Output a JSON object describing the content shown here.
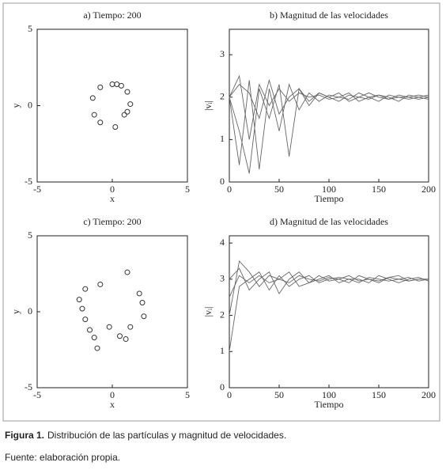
{
  "chart_data": [
    {
      "type": "scatter",
      "title": "a) Tiempo: 200",
      "x_label": "x",
      "y_label": "y",
      "xlim": [
        -5,
        5
      ],
      "ylim": [
        -5,
        5
      ],
      "xticks": [
        -5,
        0,
        5
      ],
      "yticks": [
        -5,
        0,
        5
      ],
      "color": "#333333",
      "x": [
        -1.3,
        -0.8,
        0.0,
        0.6,
        1.0,
        1.2,
        0.8,
        0.2,
        -0.8,
        -1.2,
        1.0,
        0.3
      ],
      "y": [
        0.5,
        1.2,
        1.4,
        1.3,
        0.9,
        0.1,
        -0.6,
        -1.4,
        -1.1,
        -0.6,
        -0.4,
        1.4
      ]
    },
    {
      "type": "line",
      "title": "b) Magnitud de las velocidades",
      "x_label": "Tiempo",
      "y_label": "|vᵢ|",
      "xlim": [
        0,
        200
      ],
      "ylim": [
        0,
        3.6
      ],
      "xticks": [
        0,
        50,
        100,
        150,
        200
      ],
      "yticks": [
        0,
        1,
        2,
        3
      ],
      "color": "#666666",
      "x": [
        0,
        10,
        20,
        30,
        40,
        50,
        60,
        70,
        80,
        90,
        100,
        110,
        120,
        130,
        140,
        150,
        160,
        170,
        180,
        190,
        200
      ],
      "series": [
        {
          "values": [
            2.0,
            2.5,
            1.0,
            2.3,
            1.8,
            2.2,
            1.9,
            2.1,
            2.0,
            2.05,
            1.95,
            2.0,
            2.1,
            1.9,
            2.0,
            2.05,
            1.95,
            2.0,
            2.0,
            2.05,
            2.0
          ]
        },
        {
          "values": [
            2.0,
            0.4,
            2.4,
            0.3,
            2.2,
            1.2,
            2.3,
            1.7,
            2.1,
            1.9,
            2.05,
            2.0,
            1.95,
            2.1,
            2.0,
            1.9,
            2.05,
            2.0,
            1.95,
            2.0,
            2.05
          ]
        },
        {
          "values": [
            2.0,
            2.3,
            2.1,
            1.5,
            2.4,
            1.6,
            2.0,
            2.2,
            1.9,
            2.1,
            2.0,
            1.9,
            2.05,
            2.0,
            2.1,
            2.0,
            1.95,
            2.05,
            2.0,
            1.95,
            2.0
          ]
        },
        {
          "values": [
            2.0,
            1.2,
            0.2,
            2.2,
            1.5,
            2.3,
            0.6,
            2.2,
            1.8,
            2.1,
            2.0,
            2.1,
            1.9,
            2.0,
            1.95,
            2.05,
            2.0,
            1.9,
            2.05,
            2.0,
            1.95
          ]
        }
      ]
    },
    {
      "type": "scatter",
      "title": "c) Tiempo: 200",
      "x_label": "x",
      "y_label": "y",
      "xlim": [
        -5,
        5
      ],
      "ylim": [
        -5,
        5
      ],
      "xticks": [
        -5,
        0,
        5
      ],
      "yticks": [
        -5,
        0,
        5
      ],
      "color": "#333333",
      "x": [
        1.0,
        -0.8,
        -1.8,
        -2.2,
        1.8,
        2.0,
        -2.0,
        -1.8,
        2.1,
        1.2,
        -1.5,
        -1.2,
        0.9,
        0.5,
        -0.2,
        -1.0
      ],
      "y": [
        2.6,
        1.8,
        1.5,
        0.8,
        1.2,
        0.6,
        0.2,
        -0.5,
        -0.3,
        -1.0,
        -1.2,
        -1.7,
        -1.8,
        -1.6,
        -1.0,
        -2.4
      ]
    },
    {
      "type": "line",
      "title": "d) Magnitud de las velocidades",
      "x_label": "Tiempo",
      "y_label": "|vᵢ|",
      "xlim": [
        0,
        200
      ],
      "ylim": [
        0,
        4.2
      ],
      "xticks": [
        0,
        50,
        100,
        150,
        200
      ],
      "yticks": [
        0,
        1,
        2,
        3,
        4
      ],
      "color": "#666666",
      "x": [
        0,
        10,
        20,
        30,
        40,
        50,
        60,
        70,
        80,
        90,
        100,
        110,
        120,
        130,
        140,
        150,
        160,
        170,
        180,
        190,
        200
      ],
      "series": [
        {
          "values": [
            2.0,
            3.5,
            3.2,
            2.8,
            3.1,
            3.0,
            2.9,
            3.1,
            3.0,
            2.95,
            3.05,
            3.0,
            2.9,
            3.1,
            3.0,
            2.95,
            3.05,
            3.0,
            2.95,
            3.0,
            3.0
          ]
        },
        {
          "values": [
            1.0,
            2.8,
            3.0,
            3.2,
            2.7,
            3.1,
            2.8,
            3.0,
            3.1,
            2.9,
            3.0,
            3.05,
            3.0,
            2.9,
            3.05,
            3.0,
            2.95,
            3.0,
            3.05,
            2.95,
            3.0
          ]
        },
        {
          "values": [
            3.0,
            3.3,
            2.7,
            3.0,
            3.2,
            2.6,
            3.0,
            3.2,
            2.9,
            3.0,
            3.1,
            2.9,
            3.0,
            3.0,
            2.9,
            3.1,
            3.0,
            2.9,
            3.0,
            3.05,
            2.95
          ]
        },
        {
          "values": [
            2.5,
            3.1,
            2.9,
            3.1,
            2.9,
            3.0,
            3.2,
            2.8,
            2.9,
            3.1,
            2.95,
            3.0,
            3.1,
            2.95,
            3.0,
            2.9,
            3.05,
            3.1,
            2.95,
            3.0,
            3.0
          ]
        }
      ]
    }
  ],
  "caption": {
    "label": "Figura 1.",
    "text": "Distribución de las partículas y magnitud de velocidades."
  },
  "source": "Fuente: elaboración propia."
}
